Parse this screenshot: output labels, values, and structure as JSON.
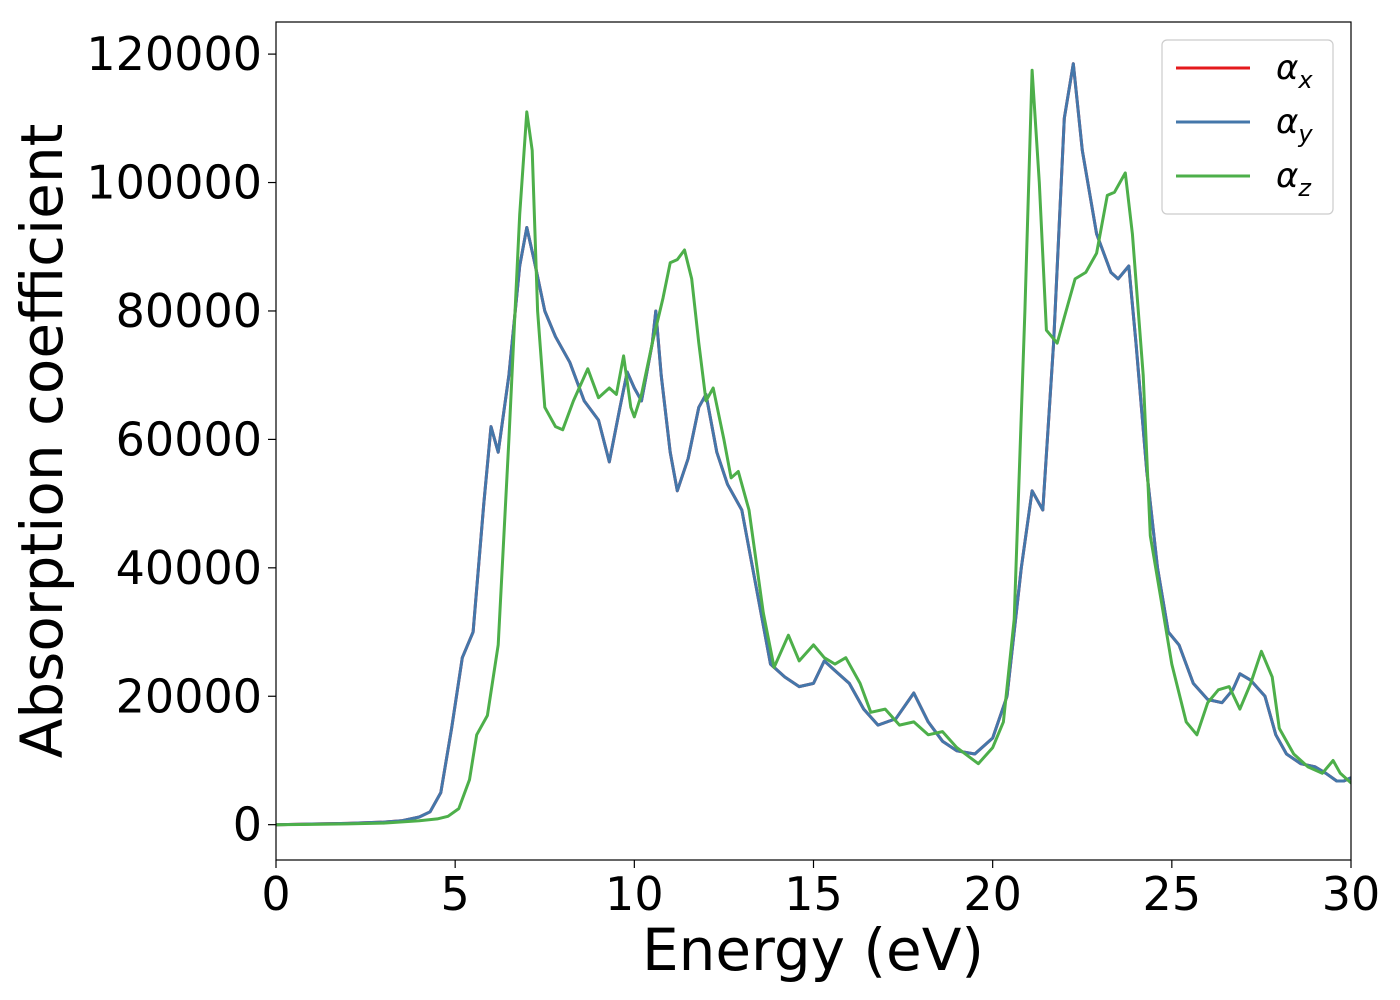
{
  "chart_data": {
    "type": "line",
    "title": "",
    "xlabel": "Energy (eV)",
    "ylabel": "Absorption coefficient",
    "xlim": [
      0,
      30
    ],
    "ylim": [
      -5500,
      125000
    ],
    "x_ticks": [
      0,
      5,
      10,
      15,
      20,
      25,
      30
    ],
    "y_ticks": [
      0,
      20000,
      40000,
      60000,
      80000,
      100000,
      120000
    ],
    "x_tick_labels": [
      "0",
      "5",
      "10",
      "15",
      "20",
      "25",
      "30"
    ],
    "y_tick_labels": [
      "0",
      "20000",
      "40000",
      "60000",
      "80000",
      "100000",
      "120000"
    ],
    "grid": false,
    "legend_position": "top-right",
    "series": [
      {
        "name": "α_x",
        "label_main": "α",
        "label_sub": "x",
        "color": "#e41a1c",
        "points": [
          [
            0,
            0
          ],
          [
            1,
            100
          ],
          [
            2,
            200
          ],
          [
            3,
            400
          ],
          [
            3.5,
            600
          ],
          [
            4,
            1200
          ],
          [
            4.3,
            2000
          ],
          [
            4.6,
            5000
          ],
          [
            4.9,
            15000
          ],
          [
            5.2,
            26000
          ],
          [
            5.5,
            30000
          ],
          [
            5.8,
            50000
          ],
          [
            6.0,
            62000
          ],
          [
            6.2,
            58000
          ],
          [
            6.5,
            70000
          ],
          [
            6.8,
            87000
          ],
          [
            7.0,
            93000
          ],
          [
            7.2,
            88000
          ],
          [
            7.5,
            80000
          ],
          [
            7.8,
            76000
          ],
          [
            8.2,
            72000
          ],
          [
            8.6,
            66000
          ],
          [
            9.0,
            63000
          ],
          [
            9.3,
            56500
          ],
          [
            9.6,
            65000
          ],
          [
            9.8,
            70500
          ],
          [
            10.0,
            68000
          ],
          [
            10.2,
            66000
          ],
          [
            10.5,
            75000
          ],
          [
            10.6,
            80000
          ],
          [
            10.75,
            70000
          ],
          [
            11.0,
            58000
          ],
          [
            11.2,
            52000
          ],
          [
            11.5,
            57000
          ],
          [
            11.8,
            65000
          ],
          [
            12.0,
            67000
          ],
          [
            12.3,
            58000
          ],
          [
            12.6,
            53000
          ],
          [
            13.0,
            49000
          ],
          [
            13.4,
            37000
          ],
          [
            13.8,
            25000
          ],
          [
            14.2,
            23000
          ],
          [
            14.6,
            21500
          ],
          [
            15.0,
            22000
          ],
          [
            15.3,
            25500
          ],
          [
            15.6,
            24000
          ],
          [
            16.0,
            22000
          ],
          [
            16.4,
            18000
          ],
          [
            16.8,
            15500
          ],
          [
            17.3,
            16500
          ],
          [
            17.8,
            20500
          ],
          [
            18.2,
            16000
          ],
          [
            18.6,
            13000
          ],
          [
            19.0,
            11500
          ],
          [
            19.5,
            11000
          ],
          [
            20.0,
            13500
          ],
          [
            20.4,
            20000
          ],
          [
            20.8,
            40000
          ],
          [
            21.1,
            52000
          ],
          [
            21.4,
            49000
          ],
          [
            21.7,
            75000
          ],
          [
            22.0,
            110000
          ],
          [
            22.25,
            118500
          ],
          [
            22.5,
            105000
          ],
          [
            22.9,
            92000
          ],
          [
            23.3,
            86000
          ],
          [
            23.5,
            85000
          ],
          [
            23.8,
            87000
          ],
          [
            24.0,
            75000
          ],
          [
            24.3,
            55000
          ],
          [
            24.6,
            40000
          ],
          [
            24.9,
            30000
          ],
          [
            25.2,
            28000
          ],
          [
            25.6,
            22000
          ],
          [
            26.0,
            19500
          ],
          [
            26.4,
            19000
          ],
          [
            26.7,
            21000
          ],
          [
            26.9,
            23500
          ],
          [
            27.2,
            22500
          ],
          [
            27.6,
            20000
          ],
          [
            27.9,
            14000
          ],
          [
            28.2,
            11000
          ],
          [
            28.6,
            9500
          ],
          [
            29.0,
            9000
          ],
          [
            29.3,
            8000
          ],
          [
            29.6,
            6800
          ],
          [
            29.8,
            6800
          ],
          [
            30,
            7300
          ]
        ]
      },
      {
        "name": "α_y",
        "label_main": "α",
        "label_sub": "y",
        "color": "#4477aa",
        "points": [
          [
            0,
            0
          ],
          [
            1,
            100
          ],
          [
            2,
            200
          ],
          [
            3,
            400
          ],
          [
            3.5,
            600
          ],
          [
            4,
            1200
          ],
          [
            4.3,
            2000
          ],
          [
            4.6,
            5000
          ],
          [
            4.9,
            15000
          ],
          [
            5.2,
            26000
          ],
          [
            5.5,
            30000
          ],
          [
            5.8,
            50000
          ],
          [
            6.0,
            62000
          ],
          [
            6.2,
            58000
          ],
          [
            6.5,
            70000
          ],
          [
            6.8,
            87000
          ],
          [
            7.0,
            93000
          ],
          [
            7.2,
            88000
          ],
          [
            7.5,
            80000
          ],
          [
            7.8,
            76000
          ],
          [
            8.2,
            72000
          ],
          [
            8.6,
            66000
          ],
          [
            9.0,
            63000
          ],
          [
            9.3,
            56500
          ],
          [
            9.6,
            65000
          ],
          [
            9.8,
            70500
          ],
          [
            10.0,
            68000
          ],
          [
            10.2,
            66000
          ],
          [
            10.5,
            75000
          ],
          [
            10.6,
            80000
          ],
          [
            10.75,
            70000
          ],
          [
            11.0,
            58000
          ],
          [
            11.2,
            52000
          ],
          [
            11.5,
            57000
          ],
          [
            11.8,
            65000
          ],
          [
            12.0,
            67000
          ],
          [
            12.3,
            58000
          ],
          [
            12.6,
            53000
          ],
          [
            13.0,
            49000
          ],
          [
            13.4,
            37000
          ],
          [
            13.8,
            25000
          ],
          [
            14.2,
            23000
          ],
          [
            14.6,
            21500
          ],
          [
            15.0,
            22000
          ],
          [
            15.3,
            25500
          ],
          [
            15.6,
            24000
          ],
          [
            16.0,
            22000
          ],
          [
            16.4,
            18000
          ],
          [
            16.8,
            15500
          ],
          [
            17.3,
            16500
          ],
          [
            17.8,
            20500
          ],
          [
            18.2,
            16000
          ],
          [
            18.6,
            13000
          ],
          [
            19.0,
            11500
          ],
          [
            19.5,
            11000
          ],
          [
            20.0,
            13500
          ],
          [
            20.4,
            20000
          ],
          [
            20.8,
            40000
          ],
          [
            21.1,
            52000
          ],
          [
            21.4,
            49000
          ],
          [
            21.7,
            75000
          ],
          [
            22.0,
            110000
          ],
          [
            22.25,
            118500
          ],
          [
            22.5,
            105000
          ],
          [
            22.9,
            92000
          ],
          [
            23.3,
            86000
          ],
          [
            23.5,
            85000
          ],
          [
            23.8,
            87000
          ],
          [
            24.0,
            75000
          ],
          [
            24.3,
            55000
          ],
          [
            24.6,
            40000
          ],
          [
            24.9,
            30000
          ],
          [
            25.2,
            28000
          ],
          [
            25.6,
            22000
          ],
          [
            26.0,
            19500
          ],
          [
            26.4,
            19000
          ],
          [
            26.7,
            21000
          ],
          [
            26.9,
            23500
          ],
          [
            27.2,
            22500
          ],
          [
            27.6,
            20000
          ],
          [
            27.9,
            14000
          ],
          [
            28.2,
            11000
          ],
          [
            28.6,
            9500
          ],
          [
            29.0,
            9000
          ],
          [
            29.3,
            8000
          ],
          [
            29.6,
            6800
          ],
          [
            29.8,
            6800
          ],
          [
            30,
            7300
          ]
        ]
      },
      {
        "name": "α_z",
        "label_main": "α",
        "label_sub": "z",
        "color": "#4daf4a",
        "points": [
          [
            0,
            0
          ],
          [
            1,
            50
          ],
          [
            2,
            120
          ],
          [
            3,
            250
          ],
          [
            4,
            600
          ],
          [
            4.5,
            900
          ],
          [
            4.8,
            1300
          ],
          [
            5.1,
            2500
          ],
          [
            5.4,
            7000
          ],
          [
            5.6,
            14000
          ],
          [
            5.9,
            17000
          ],
          [
            6.2,
            28000
          ],
          [
            6.5,
            60000
          ],
          [
            6.8,
            95000
          ],
          [
            7.0,
            111000
          ],
          [
            7.15,
            105000
          ],
          [
            7.3,
            80000
          ],
          [
            7.5,
            65000
          ],
          [
            7.8,
            62000
          ],
          [
            8.0,
            61500
          ],
          [
            8.3,
            66000
          ],
          [
            8.7,
            71000
          ],
          [
            9.0,
            66500
          ],
          [
            9.3,
            68000
          ],
          [
            9.5,
            67000
          ],
          [
            9.7,
            73000
          ],
          [
            9.9,
            65000
          ],
          [
            10.0,
            63500
          ],
          [
            10.2,
            67000
          ],
          [
            10.5,
            75000
          ],
          [
            10.8,
            82000
          ],
          [
            11.0,
            87500
          ],
          [
            11.2,
            88000
          ],
          [
            11.4,
            89500
          ],
          [
            11.6,
            85000
          ],
          [
            11.8,
            75000
          ],
          [
            12.0,
            66000
          ],
          [
            12.2,
            68000
          ],
          [
            12.5,
            60000
          ],
          [
            12.7,
            54000
          ],
          [
            12.9,
            55000
          ],
          [
            13.2,
            49000
          ],
          [
            13.6,
            33000
          ],
          [
            13.9,
            24500
          ],
          [
            14.3,
            29500
          ],
          [
            14.6,
            25500
          ],
          [
            15.0,
            28000
          ],
          [
            15.3,
            26000
          ],
          [
            15.6,
            25000
          ],
          [
            15.9,
            26000
          ],
          [
            16.3,
            22000
          ],
          [
            16.6,
            17500
          ],
          [
            17.0,
            18000
          ],
          [
            17.4,
            15500
          ],
          [
            17.8,
            16000
          ],
          [
            18.2,
            14000
          ],
          [
            18.6,
            14500
          ],
          [
            19.0,
            12000
          ],
          [
            19.6,
            9500
          ],
          [
            20.0,
            12000
          ],
          [
            20.3,
            16000
          ],
          [
            20.6,
            32000
          ],
          [
            20.9,
            80000
          ],
          [
            21.1,
            117500
          ],
          [
            21.3,
            100000
          ],
          [
            21.5,
            77000
          ],
          [
            21.8,
            75000
          ],
          [
            22.0,
            79000
          ],
          [
            22.3,
            85000
          ],
          [
            22.6,
            86000
          ],
          [
            22.9,
            89000
          ],
          [
            23.2,
            98000
          ],
          [
            23.4,
            98500
          ],
          [
            23.7,
            101500
          ],
          [
            23.9,
            92000
          ],
          [
            24.2,
            70000
          ],
          [
            24.4,
            45000
          ],
          [
            24.7,
            35000
          ],
          [
            25.0,
            25000
          ],
          [
            25.4,
            16000
          ],
          [
            25.7,
            14000
          ],
          [
            26.0,
            19000
          ],
          [
            26.3,
            21000
          ],
          [
            26.6,
            21500
          ],
          [
            26.9,
            18000
          ],
          [
            27.2,
            22000
          ],
          [
            27.5,
            27000
          ],
          [
            27.8,
            23000
          ],
          [
            28.0,
            15000
          ],
          [
            28.4,
            11000
          ],
          [
            28.8,
            9000
          ],
          [
            29.2,
            8000
          ],
          [
            29.5,
            10000
          ],
          [
            29.7,
            8000
          ],
          [
            30,
            6500
          ]
        ]
      }
    ]
  }
}
